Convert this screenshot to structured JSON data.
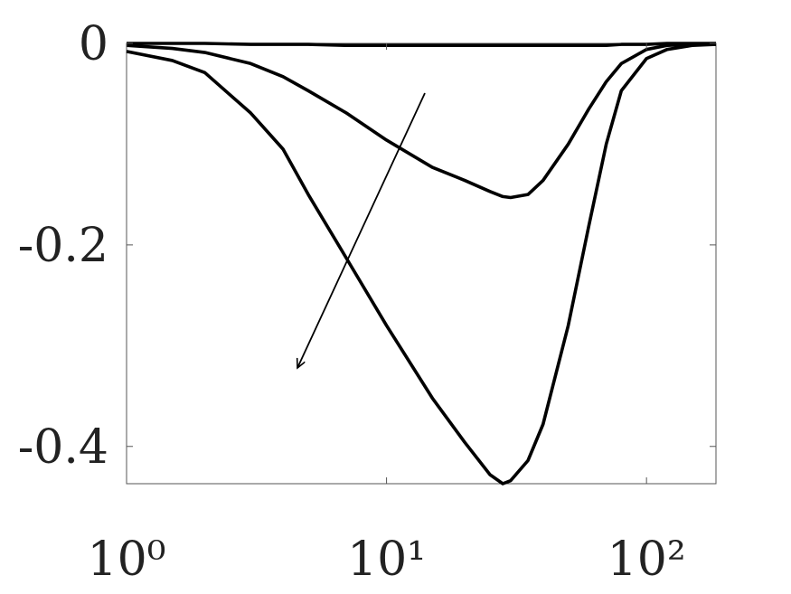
{
  "chart_data": {
    "type": "line",
    "x": [
      1,
      1.5,
      2,
      3,
      4,
      5,
      7,
      10,
      15,
      20,
      25,
      28,
      30,
      35,
      40,
      50,
      60,
      70,
      80,
      100,
      120,
      150,
      185
    ],
    "xscale": "log",
    "xlim": [
      1,
      185
    ],
    "xticks": [
      {
        "value": 1,
        "label": "10⁰"
      },
      {
        "value": 10,
        "label": "10¹"
      },
      {
        "value": 100,
        "label": "10²"
      }
    ],
    "ylim": [
      -0.437,
      0
    ],
    "yticks": [
      0,
      -0.2,
      -0.4
    ],
    "grid": false,
    "series": [
      {
        "color": "#000000",
        "values": [
          0,
          0,
          0,
          -0.001,
          -0.001,
          -0.001,
          -0.002,
          -0.002,
          -0.002,
          -0.002,
          -0.002,
          -0.002,
          -0.002,
          -0.002,
          -0.002,
          -0.002,
          -0.002,
          -0.002,
          -0.001,
          -0.001,
          0,
          0,
          0
        ]
      },
      {
        "color": "#000000",
        "values": [
          -0.002,
          -0.005,
          -0.009,
          -0.02,
          -0.033,
          -0.047,
          -0.069,
          -0.096,
          -0.123,
          -0.136,
          -0.147,
          -0.152,
          -0.153,
          -0.15,
          -0.136,
          -0.1,
          -0.065,
          -0.038,
          -0.02,
          -0.006,
          -0.002,
          -0.001,
          -0.001
        ]
      },
      {
        "color": "#000000",
        "values": [
          -0.008,
          -0.017,
          -0.029,
          -0.069,
          -0.105,
          -0.15,
          -0.213,
          -0.28,
          -0.352,
          -0.396,
          -0.428,
          -0.437,
          -0.434,
          -0.414,
          -0.378,
          -0.28,
          -0.181,
          -0.1,
          -0.047,
          -0.015,
          -0.006,
          -0.002,
          -0.001
        ]
      }
    ]
  }
}
